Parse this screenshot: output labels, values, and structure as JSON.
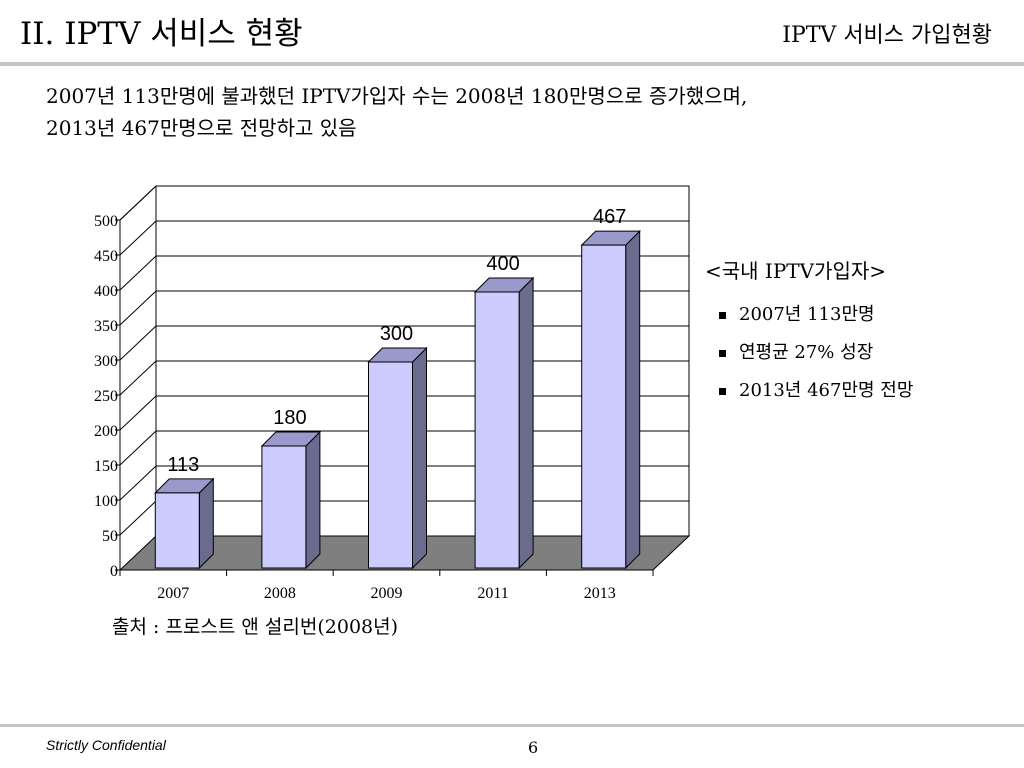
{
  "header": {
    "title": "II. IPTV 서비스 현황",
    "section": "IPTV 서비스 가입현황"
  },
  "summary": {
    "line1": "2007년 113만명에 불과했던 IPTV가입자 수는 2008년 180만명으로 증가했으며,",
    "line2": "2013년 467만명으로 전망하고 있음"
  },
  "chart_data": {
    "type": "bar",
    "categories": [
      "2007",
      "2008",
      "2009",
      "2011",
      "2013"
    ],
    "values": [
      113,
      180,
      300,
      400,
      467
    ],
    "data_labels": [
      "113",
      "180",
      "300",
      "400",
      "467"
    ],
    "ylim": [
      0,
      500
    ],
    "yticks": [
      0,
      50,
      100,
      150,
      200,
      250,
      300,
      350,
      400,
      450,
      500
    ],
    "grid": true,
    "style": "3d",
    "colors": {
      "bar_front": "#ccccff",
      "bar_side": "#6b6b8e",
      "bar_top": "#9999cc",
      "floor": "#7f7f7f"
    }
  },
  "legend": {
    "title": "<국내 IPTV가입자>",
    "items": [
      "2007년 113만명",
      "연평균 27% 성장",
      "2013년 467만명 전망"
    ]
  },
  "source": "출처 : 프로스트 앤 설리번(2008년)",
  "footer": {
    "confidential": "Strictly Confidential",
    "page": "6"
  }
}
